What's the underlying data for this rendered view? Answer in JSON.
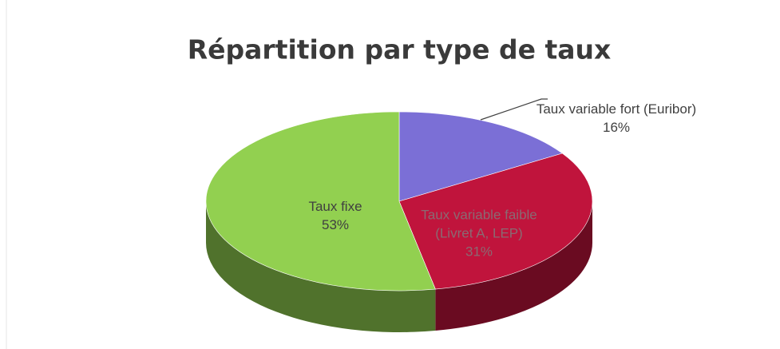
{
  "chart_data": {
    "type": "pie",
    "title": "Répartition par type de taux",
    "categories": [
      "Taux variable fort (Euribor)",
      "Taux variable faible (Livret A, LEP)",
      "Taux fixe"
    ],
    "values": [
      16,
      31,
      53
    ],
    "value_labels": [
      "16%",
      "31%",
      "53%"
    ],
    "colors": [
      "#7b6fd6",
      "#c0143c",
      "#92d050"
    ]
  }
}
